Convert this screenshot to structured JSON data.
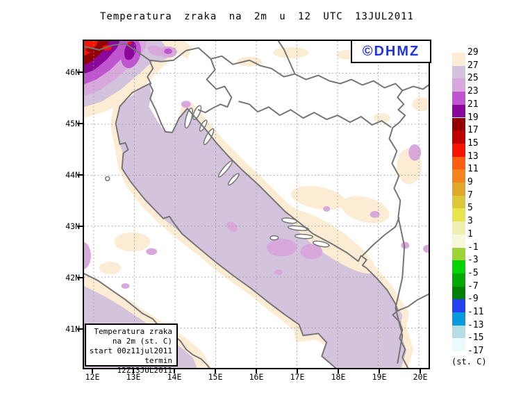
{
  "title": "Temperatura zraka na 2m u 12 UTC 13JUL2011",
  "logo": {
    "text": "©DHMZ",
    "color": "#2233e0"
  },
  "axes": {
    "lat": [
      "46N",
      "45N",
      "44N",
      "43N",
      "42N",
      "41N"
    ],
    "lon": [
      "12E",
      "13E",
      "14E",
      "15E",
      "16E",
      "17E",
      "18E",
      "19E",
      "20E"
    ]
  },
  "legend": {
    "unit": "(st. C)",
    "ticks": [
      "29",
      "27",
      "25",
      "23",
      "21",
      "19",
      "17",
      "15",
      "13",
      "11",
      "9",
      "7",
      "5",
      "3",
      "1",
      "-1",
      "-3",
      "-5",
      "-7",
      "-9",
      "-11",
      "-13",
      "-15",
      "-17"
    ],
    "box_colors": [
      "#fcecd4",
      "#d3c3dc",
      "#d8a8dc",
      "#bf55cf",
      "#8a0799",
      "#920000",
      "#bf0000",
      "#f81400",
      "#ff5f0f",
      "#f5831e",
      "#dfa829",
      "#ddc839",
      "#e8e44c",
      "#f0efb2",
      "#f6f8d8",
      "#9cd434",
      "#00d400",
      "#00aa00",
      "#008000",
      "#2341f0",
      "#089add",
      "#b4dde4",
      "#e9fbfb"
    ]
  },
  "info_box": {
    "lines": [
      "Temperatura zraka",
      "na 2m (st. C)",
      "start 00z11jul2011",
      "termin 12Z13JUL2011"
    ]
  },
  "map": {
    "colors": {
      "sea": "#d3c3dc",
      "coast_fringe": "#fcecd4",
      "warm_patch": "#d8a8dc",
      "orchid": "#bf55cf",
      "purple": "#8a0799",
      "maroon": "#920000",
      "dark_red": "#bf0000",
      "red": "#f81400",
      "coastline": "#757575",
      "grid": "#999999",
      "frame": "#000000"
    }
  }
}
